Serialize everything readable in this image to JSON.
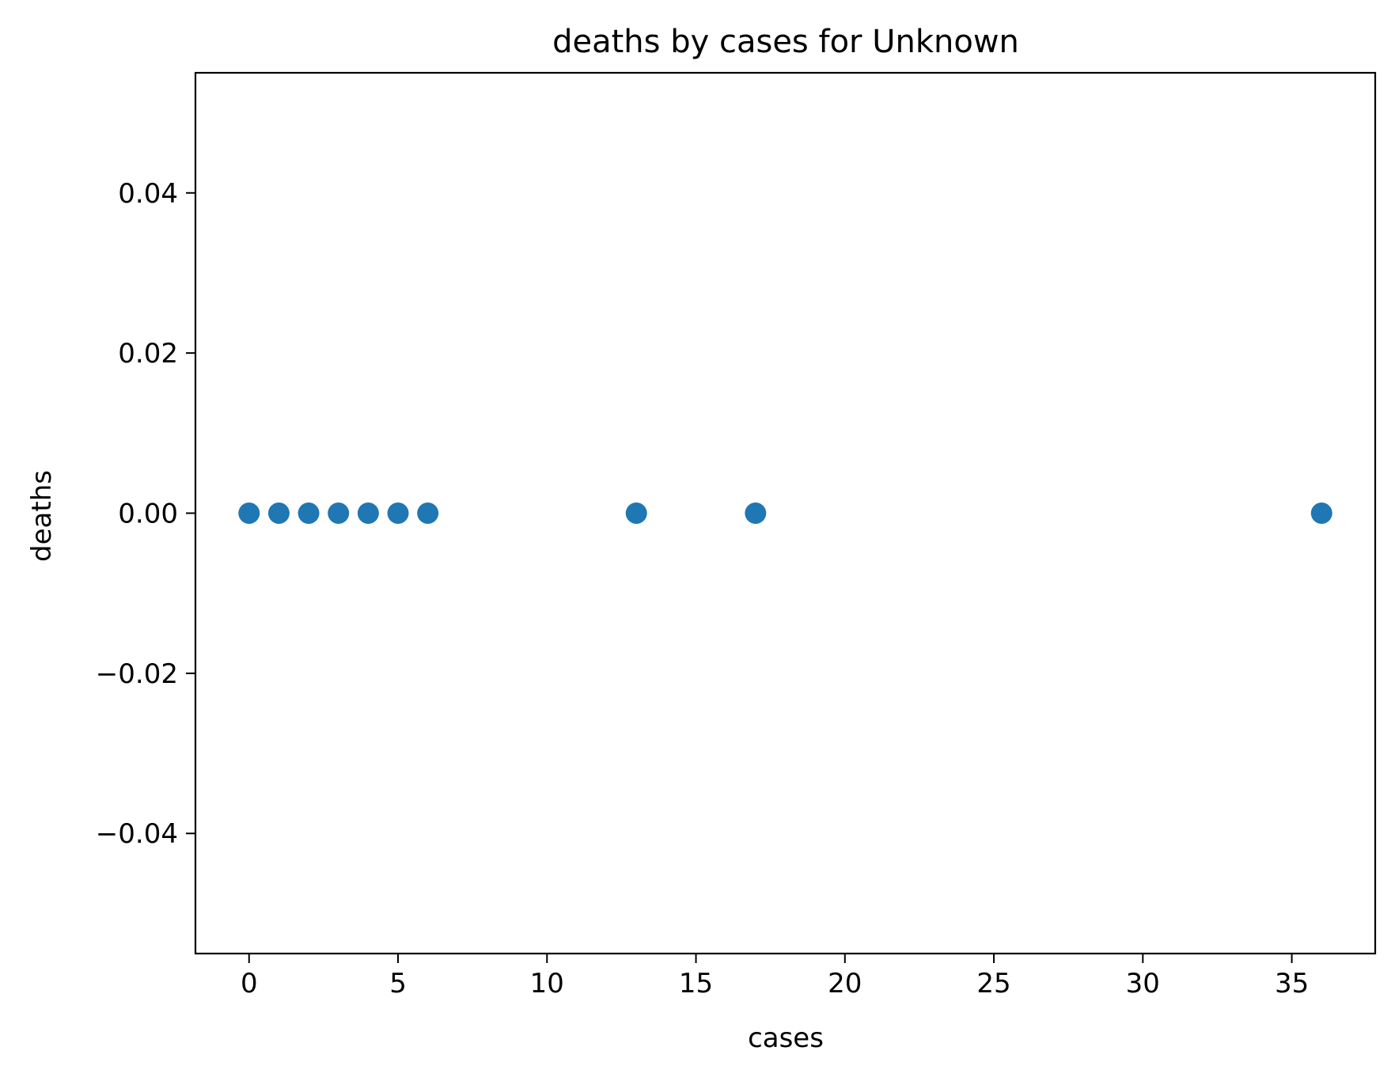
{
  "chart_data": {
    "type": "scatter",
    "title": "deaths by cases for Unknown",
    "xlabel": "cases",
    "ylabel": "deaths",
    "xlim": [
      -1.8,
      37.8
    ],
    "ylim": [
      -0.055,
      0.055
    ],
    "x_ticks": [
      0,
      5,
      10,
      15,
      20,
      25,
      30,
      35
    ],
    "x_tick_labels": [
      "0",
      "5",
      "10",
      "15",
      "20",
      "25",
      "30",
      "35"
    ],
    "y_ticks": [
      -0.04,
      -0.02,
      0.0,
      0.02,
      0.04
    ],
    "y_tick_labels": [
      "−0.04",
      "−0.02",
      "0.00",
      "0.02",
      "0.04"
    ],
    "grid": false,
    "series": [
      {
        "color": "#1f77b4",
        "points": [
          {
            "x": 0,
            "y": 0
          },
          {
            "x": 1,
            "y": 0
          },
          {
            "x": 2,
            "y": 0
          },
          {
            "x": 3,
            "y": 0
          },
          {
            "x": 4,
            "y": 0
          },
          {
            "x": 5,
            "y": 0
          },
          {
            "x": 6,
            "y": 0
          },
          {
            "x": 13,
            "y": 0
          },
          {
            "x": 17,
            "y": 0
          },
          {
            "x": 36,
            "y": 0
          }
        ]
      }
    ]
  }
}
